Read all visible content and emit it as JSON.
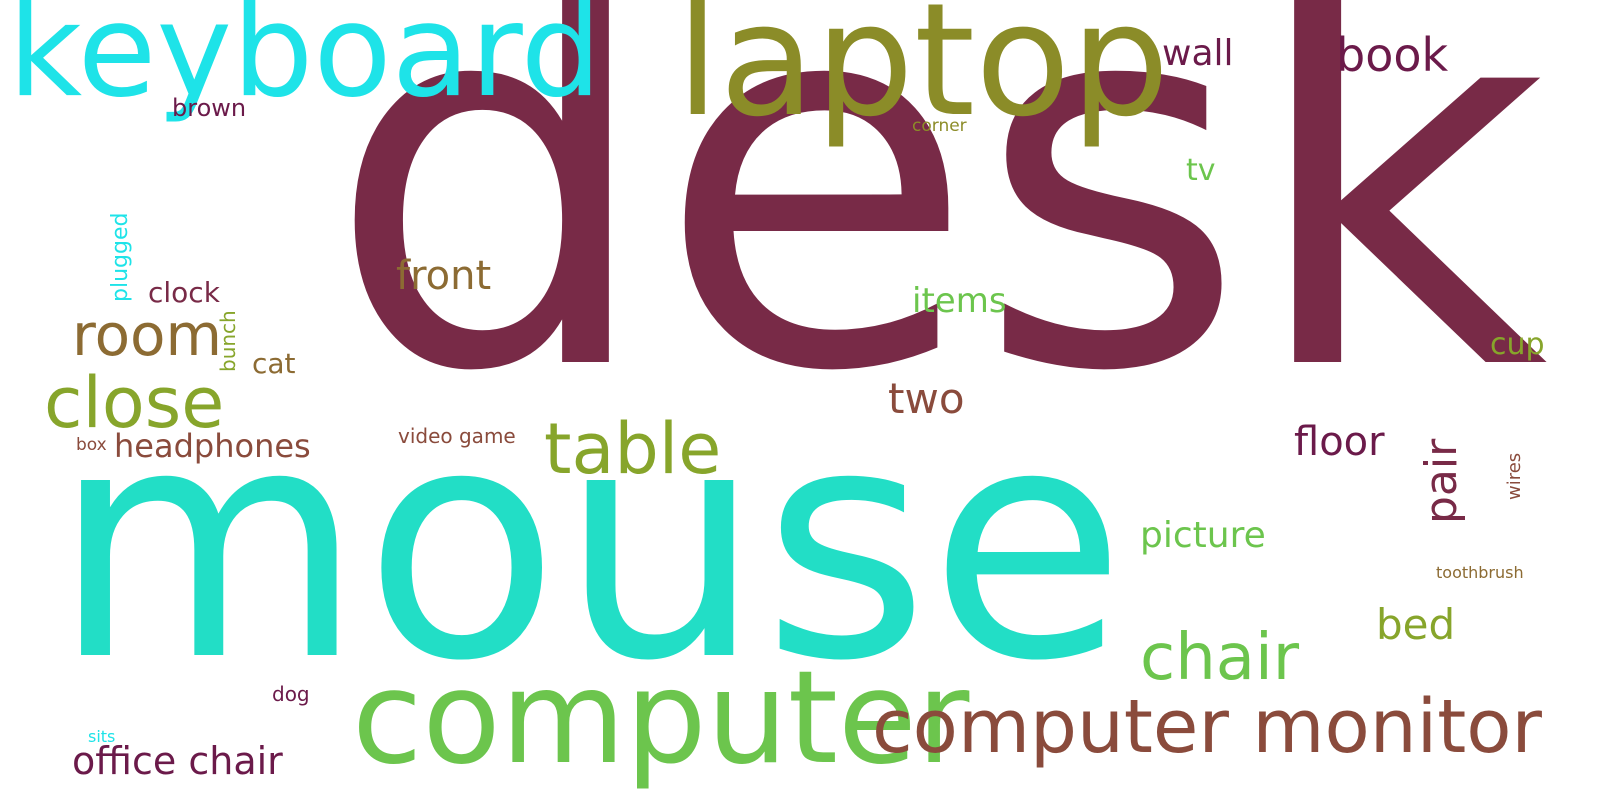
{
  "words": {
    "desk": "desk",
    "mouse": "mouse",
    "keyboard": "keyboard",
    "laptop": "laptop",
    "computer": "computer",
    "computer_monitor": "computer monitor",
    "table": "table",
    "chair": "chair",
    "close": "close",
    "room": "room",
    "office_chair": "office chair",
    "book": "book",
    "wall": "wall",
    "front": "front",
    "headphones": "headphones",
    "two": "two",
    "floor": "floor",
    "pair": "pair",
    "picture": "picture",
    "bed": "bed",
    "items": "items",
    "clock": "clock",
    "cat": "cat",
    "cup": "cup",
    "tv": "tv",
    "brown": "brown",
    "video_game": "video game",
    "plugged": "plugged",
    "bunch": "bunch",
    "corner": "corner",
    "box": "box",
    "wires": "wires",
    "toothbrush": "toothbrush",
    "dog": "dog",
    "sits": "sits"
  },
  "colors": {
    "maroon": "#782A47",
    "plum": "#6B1A4A",
    "cyan": "#1EE3E8",
    "teal": "#22DEC6",
    "olive": "#8B8C28",
    "green": "#6CC54D",
    "yellow_green": "#87A52B",
    "brown": "#8A4B3C",
    "ochre": "#8C6B33"
  }
}
